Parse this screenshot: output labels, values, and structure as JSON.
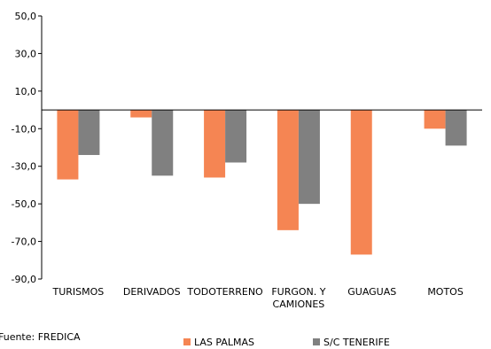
{
  "chart_data": {
    "type": "bar",
    "categories": [
      "TURISMOS",
      "DERIVADOS",
      "TODOTERRENO",
      "FURGON. Y CAMIONES",
      "GUAGUAS",
      "MOTOS"
    ],
    "category_lines": [
      [
        "TURISMOS"
      ],
      [
        "DERIVADOS"
      ],
      [
        "TODOTERRENO"
      ],
      [
        "FURGON. Y",
        "CAMIONES"
      ],
      [
        "GUAGUAS"
      ],
      [
        "MOTOS"
      ]
    ],
    "series": [
      {
        "name": "LAS PALMAS",
        "color": "#F58553",
        "values": [
          -37,
          -4,
          -36,
          -64,
          -77,
          -10
        ]
      },
      {
        "name": "S/C TENERIFE",
        "color": "#808080",
        "values": [
          -24,
          -35,
          -28,
          -50,
          null,
          -19
        ]
      }
    ],
    "ylim": [
      -90,
      50
    ],
    "yticks": [
      50,
      30,
      10,
      -10,
      -30,
      -50,
      -70,
      -90
    ],
    "ytick_labels": [
      "50,0",
      "30,0",
      "10,0",
      "-10,0",
      "-30,0",
      "-50,0",
      "-70,0",
      "-90,0"
    ],
    "grid": false,
    "legend": "bottom"
  },
  "source": "Fuente: FREDICA"
}
